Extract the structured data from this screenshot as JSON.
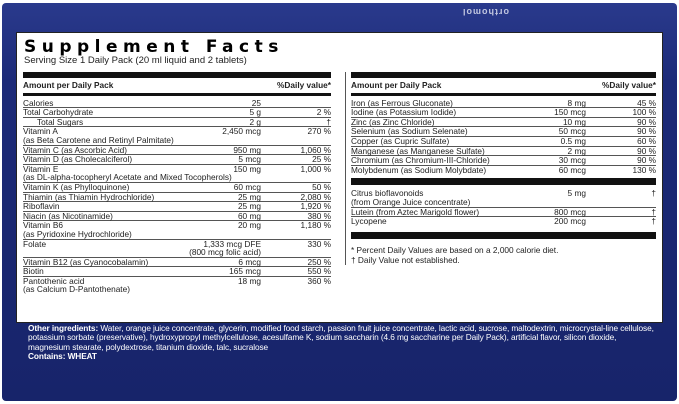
{
  "logo": "orthomol",
  "title": "Supplement Facts",
  "serving": "Serving Size 1 Daily Pack  (20 ml liquid and 2 tablets)",
  "header": {
    "amount": "Amount per Daily Pack",
    "dv": "%Daily value*"
  },
  "left": [
    {
      "name": "Calories",
      "amount": "25",
      "dv": ""
    },
    {
      "name": "Total Carbohydrate",
      "amount": "5 g",
      "dv": "2 %"
    },
    {
      "name": "Total Sugars",
      "amount": "2 g",
      "dv": "†",
      "indent": true
    },
    {
      "name": "Vitamin A",
      "amount": "2,450 mcg",
      "dv": "270 %",
      "sub": "(as Beta Carotene and Retinyl Palmitate)"
    },
    {
      "name": "Vitamin C (as Ascorbic Acid)",
      "amount": "950 mg",
      "dv": "1,060 %"
    },
    {
      "name": "Vitamin D (as Cholecalciferol)",
      "amount": "5 mcg",
      "dv": "25 %"
    },
    {
      "name": "Vitamin E",
      "amount": "150 mg",
      "dv": "1,000 %",
      "sub": "(as DL-alpha-tocopheryl Acetate and Mixed Tocopherols)"
    },
    {
      "name": "Vitamin K (as Phylloquinone)",
      "amount": "60 mcg",
      "dv": "50 %"
    },
    {
      "name": "Thiamin (as Thiamin Hydrochloride)",
      "amount": "25 mg",
      "dv": "2,080 %"
    },
    {
      "name": "Riboflavin",
      "amount": "25 mg",
      "dv": "1,920 %"
    },
    {
      "name": "Niacin (as Nicotinamide)",
      "amount": "60 mg",
      "dv": "380 %"
    },
    {
      "name": "Vitamin B6",
      "amount": "20 mg",
      "dv": "1,180 %",
      "sub": "(as Pyridoxine Hydrochloride)"
    },
    {
      "name": "Folate",
      "amount": "1,333 mcg DFE",
      "dv": "330 %",
      "sub2": "(800 mcg folic acid)"
    },
    {
      "name": "Vitamin B12 (as Cyanocobalamin)",
      "amount": "6 mcg",
      "dv": "250 %"
    },
    {
      "name": "Biotin",
      "amount": "165 mcg",
      "dv": "550 %"
    },
    {
      "name": "Pantothenic acid",
      "amount": "18 mg",
      "dv": "360 %",
      "sub": "(as Calcium D-Pantothenate)",
      "last": true
    }
  ],
  "right": [
    {
      "name": "Iron (as Ferrous Gluconate)",
      "amount": "8 mg",
      "dv": "45 %"
    },
    {
      "name": "Iodine (as Potassium Iodide)",
      "amount": "150 mcg",
      "dv": "100 %"
    },
    {
      "name": "Zinc (as Zinc Chloride)",
      "amount": "10 mg",
      "dv": "90 %"
    },
    {
      "name": "Selenium (as Sodium Selenate)",
      "amount": "50 mcg",
      "dv": "90 %"
    },
    {
      "name": "Copper (as Cupric Sulfate)",
      "amount": "0.5 mg",
      "dv": "60 %"
    },
    {
      "name": "Manganese (as Manganese Sulfate)",
      "amount": "2 mg",
      "dv": "90 %"
    },
    {
      "name": "Chromium (as Chromium-III-Chloride)",
      "amount": "30 mcg",
      "dv": "90 %"
    },
    {
      "name": "Molybdenum (as Sodium Molybdate)",
      "amount": "60 mcg",
      "dv": "130 %",
      "last": true
    }
  ],
  "right2": [
    {
      "name": "Citrus bioflavonoids",
      "amount": "5 mg",
      "dv": "†",
      "sub": "(from Orange Juice concentrate)"
    },
    {
      "name": "Lutein (from Aztec Marigold flower)",
      "amount": "800 mcg",
      "dv": "†"
    },
    {
      "name": "Lycopene",
      "amount": "200 mcg",
      "dv": "†",
      "last": true
    }
  ],
  "footnotes": [
    "*  Percent Daily Values are based on a 2,000 calorie diet.",
    "†  Daily Value not established."
  ],
  "ingredients": {
    "label": "Other ingredients:",
    "text": " Water, orange juice concentrate, glycerin, modified food starch, passion fruit juice concentrate, lactic acid, sucrose, maltodextrin, microcrystal-line cellulose, potassium sorbate (preservative), hydroxypropyl methylcellulose, acesulfame K, sodium saccharin (4.6 mg saccharine per Daily Pack), artificial flavor, silicon dioxide, magnesium stearate, polydextrose, titanium dioxide, talc, sucralose"
  },
  "contains": {
    "label": "Contains:",
    "value": "WHEAT"
  }
}
